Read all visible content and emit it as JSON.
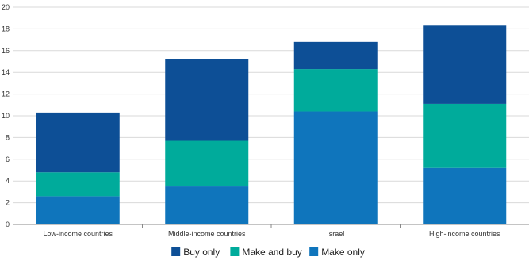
{
  "chart_data": {
    "type": "bar",
    "stacked": true,
    "title": "",
    "xlabel": "",
    "ylabel": "",
    "categories": [
      "Low-income countries",
      "Middle-income countries",
      "Israel",
      "High-income countries"
    ],
    "ylim": [
      0,
      20
    ],
    "yticks": [
      0,
      2,
      4,
      6,
      8,
      10,
      12,
      14,
      16,
      18,
      20
    ],
    "grid": true,
    "legend_position": "bottom",
    "series": [
      {
        "name": "Make only",
        "color": "#0f75bc",
        "values": [
          2.6,
          3.5,
          10.4,
          5.2
        ]
      },
      {
        "name": "Make and buy",
        "color": "#00ab9b",
        "values": [
          2.2,
          4.2,
          3.9,
          5.9
        ]
      },
      {
        "name": "Buy only",
        "color": "#0d4f96",
        "values": [
          5.5,
          7.5,
          2.5,
          7.2
        ]
      }
    ],
    "legend_order": [
      "Buy only",
      "Make and buy",
      "Make only"
    ]
  }
}
